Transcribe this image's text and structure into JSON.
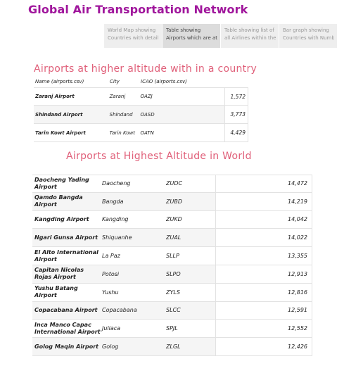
{
  "header": {
    "title": "Global Air Transportation Network"
  },
  "tabs": [
    {
      "line1": "World Map showing",
      "line2": "Countries with detail..."
    },
    {
      "line1": "Table showing",
      "line2": "Airports which are at ..."
    },
    {
      "line1": "Table showing list of",
      "line2": "all Airlines within the ..."
    },
    {
      "line1": "Bar graph showing",
      "line2": "Countries with Numb..."
    }
  ],
  "country_section": {
    "title": "Airports at higher altitude with in a country",
    "headers": {
      "name": "Name (airports.csv)",
      "city": "City",
      "icao": "ICAO (airports.csv)"
    },
    "rows": [
      {
        "name": "Zaranj Airport",
        "city": "Zaranj",
        "icao": "OAZJ",
        "altitude": "1,572"
      },
      {
        "name": "Shindand Airport",
        "city": "Shindand",
        "icao": "OASD",
        "altitude": "3,773"
      },
      {
        "name": "Tarin Kowt Airport",
        "city": "Tarin Kowt",
        "icao": "OATN",
        "altitude": "4,429"
      }
    ]
  },
  "world_section": {
    "title": "Airports at Highest Altitude in World",
    "rows": [
      {
        "name": "Daocheng Yading Airport",
        "city": "Daocheng",
        "icao": "ZUDC",
        "altitude": "14,472"
      },
      {
        "name": "Qamdo Bangda Airport",
        "city": "Bangda",
        "icao": "ZUBD",
        "altitude": "14,219"
      },
      {
        "name": "Kangding Airport",
        "city": "Kangding",
        "icao": "ZUKD",
        "altitude": "14,042"
      },
      {
        "name": "Ngari Gunsa Airport",
        "city": "Shiquanhe",
        "icao": "ZUAL",
        "altitude": "14,022"
      },
      {
        "name": "El Alto International Airport",
        "city": "La Paz",
        "icao": "SLLP",
        "altitude": "13,355"
      },
      {
        "name": "Capitan Nicolas Rojas Airport",
        "city": "Potosi",
        "icao": "SLPO",
        "altitude": "12,913"
      },
      {
        "name": "Yushu Batang Airport",
        "city": "Yushu",
        "icao": "ZYLS",
        "altitude": "12,816"
      },
      {
        "name": "Copacabana Airport",
        "city": "Copacabana",
        "icao": "SLCC",
        "altitude": "12,591"
      },
      {
        "name": "Inca Manco Capac International Airport",
        "city": "Juliaca",
        "icao": "SPJL",
        "altitude": "12,552"
      },
      {
        "name": "Golog Maqin Airport",
        "city": "Golog",
        "icao": "ZLGL",
        "altitude": "12,426"
      }
    ]
  }
}
